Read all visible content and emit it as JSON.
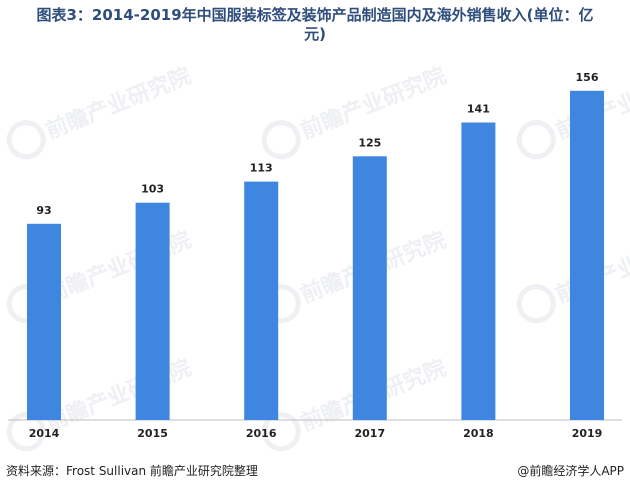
{
  "title_line1": "图表3：2014-2019年中国服装标签及装饰产品制造国内及海外销售收入(单位：亿",
  "title_line2": "元)",
  "chart_data": {
    "type": "bar",
    "categories": [
      "2014",
      "2015",
      "2016",
      "2017",
      "2018",
      "2019"
    ],
    "values": [
      93,
      103,
      113,
      125,
      141,
      156
    ],
    "title": "图表3：2014-2019年中国服装标签及装饰产品制造国内及海外销售收入(单位：亿元)",
    "xlabel": "",
    "ylabel": "",
    "ylim": [
      0,
      170
    ],
    "grid": false,
    "legend": "none",
    "bar_color": "#3f86e0"
  },
  "footer": {
    "source": "资料来源：Frost Sullivan  前瞻产业研究院整理",
    "app": "@前瞻经济学人APP"
  },
  "watermark": {
    "brand": "前瞻产业研究院"
  },
  "colors": {
    "title": "#2f4e7c",
    "bar": "#3f86e0",
    "axis": "#bfbfbf"
  }
}
